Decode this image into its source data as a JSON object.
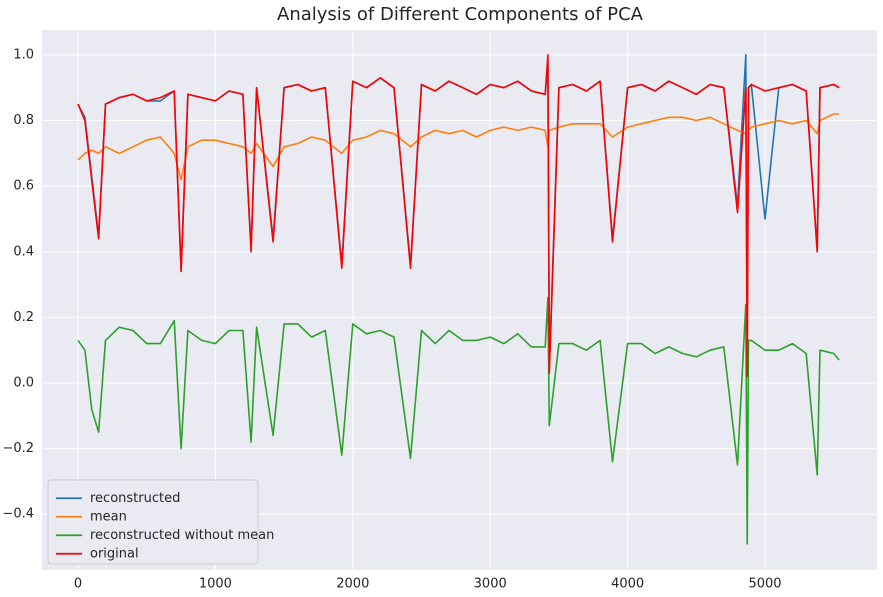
{
  "chart_data": {
    "type": "line",
    "title": "Analysis of Different Components of PCA",
    "x": [
      0,
      50,
      100,
      150,
      200,
      300,
      400,
      500,
      600,
      700,
      750,
      800,
      900,
      1000,
      1100,
      1200,
      1260,
      1300,
      1420,
      1500,
      1600,
      1700,
      1800,
      1920,
      2000,
      2100,
      2200,
      2300,
      2420,
      2500,
      2600,
      2700,
      2800,
      2900,
      3000,
      3100,
      3200,
      3300,
      3400,
      3420,
      3430,
      3500,
      3600,
      3700,
      3800,
      3890,
      4000,
      4100,
      4200,
      4300,
      4400,
      4500,
      4600,
      4700,
      4800,
      4860,
      4870,
      4880,
      4900,
      5000,
      5100,
      5200,
      5300,
      5380,
      5400,
      5500,
      5540
    ],
    "series": [
      {
        "name": "reconstructed",
        "color": "#1f77b4",
        "values": [
          0.85,
          0.81,
          0.63,
          0.45,
          0.85,
          0.87,
          0.88,
          0.86,
          0.86,
          0.89,
          0.35,
          0.88,
          0.87,
          0.86,
          0.89,
          0.88,
          0.41,
          0.9,
          0.44,
          0.9,
          0.91,
          0.89,
          0.9,
          0.36,
          0.92,
          0.9,
          0.93,
          0.9,
          0.36,
          0.91,
          0.89,
          0.92,
          0.9,
          0.88,
          0.91,
          0.9,
          0.92,
          0.89,
          0.88,
          0.98,
          0.05,
          0.9,
          0.91,
          0.89,
          0.92,
          0.44,
          0.9,
          0.91,
          0.89,
          0.92,
          0.9,
          0.88,
          0.91,
          0.9,
          0.54,
          1.0,
          0.05,
          0.9,
          0.91,
          0.5,
          0.9,
          0.91,
          0.89,
          0.41,
          0.9,
          0.91,
          0.9
        ]
      },
      {
        "name": "mean",
        "color": "#ff7f0e",
        "values": [
          0.68,
          0.7,
          0.71,
          0.7,
          0.72,
          0.7,
          0.72,
          0.74,
          0.75,
          0.7,
          0.62,
          0.72,
          0.74,
          0.74,
          0.73,
          0.72,
          0.7,
          0.73,
          0.66,
          0.72,
          0.73,
          0.75,
          0.74,
          0.7,
          0.74,
          0.75,
          0.77,
          0.76,
          0.72,
          0.75,
          0.77,
          0.76,
          0.77,
          0.75,
          0.77,
          0.78,
          0.77,
          0.78,
          0.77,
          0.72,
          0.77,
          0.78,
          0.79,
          0.79,
          0.79,
          0.75,
          0.78,
          0.79,
          0.8,
          0.81,
          0.81,
          0.8,
          0.81,
          0.79,
          0.77,
          0.76,
          0.58,
          0.77,
          0.78,
          0.79,
          0.8,
          0.79,
          0.8,
          0.76,
          0.8,
          0.82,
          0.82
        ]
      },
      {
        "name": "reconstructed without mean",
        "color": "#2ca02c",
        "values": [
          0.13,
          0.1,
          -0.08,
          -0.15,
          0.13,
          0.17,
          0.16,
          0.12,
          0.12,
          0.19,
          -0.2,
          0.16,
          0.13,
          0.12,
          0.16,
          0.16,
          -0.18,
          0.17,
          -0.16,
          0.18,
          0.18,
          0.14,
          0.16,
          -0.22,
          0.18,
          0.15,
          0.16,
          0.14,
          -0.23,
          0.16,
          0.12,
          0.16,
          0.13,
          0.13,
          0.14,
          0.12,
          0.15,
          0.11,
          0.11,
          0.26,
          -0.13,
          0.12,
          0.12,
          0.1,
          0.13,
          -0.24,
          0.12,
          0.12,
          0.09,
          0.11,
          0.09,
          0.08,
          0.1,
          0.11,
          -0.25,
          0.24,
          -0.49,
          0.13,
          0.13,
          0.1,
          0.1,
          0.12,
          0.09,
          -0.28,
          0.1,
          0.09,
          0.07
        ]
      },
      {
        "name": "original",
        "color": "#ff0000",
        "values": [
          0.85,
          0.8,
          0.62,
          0.44,
          0.85,
          0.87,
          0.88,
          0.86,
          0.87,
          0.89,
          0.34,
          0.88,
          0.87,
          0.86,
          0.89,
          0.88,
          0.4,
          0.9,
          0.43,
          0.9,
          0.91,
          0.89,
          0.9,
          0.35,
          0.92,
          0.9,
          0.93,
          0.9,
          0.35,
          0.91,
          0.89,
          0.92,
          0.9,
          0.88,
          0.91,
          0.9,
          0.92,
          0.89,
          0.88,
          1.0,
          0.03,
          0.9,
          0.91,
          0.89,
          0.92,
          0.43,
          0.9,
          0.91,
          0.89,
          0.92,
          0.9,
          0.88,
          0.91,
          0.9,
          0.52,
          0.9,
          0.02,
          0.9,
          0.91,
          0.89,
          0.9,
          0.91,
          0.89,
          0.4,
          0.9,
          0.91,
          0.9
        ]
      }
    ],
    "xlim": [
      -262,
      5815
    ],
    "xticks": [
      0,
      1000,
      2000,
      3000,
      4000,
      5000
    ],
    "ylim": [
      -0.57,
      1.076
    ],
    "yticks": [
      {
        "value": -0.4,
        "label": "−0.4"
      },
      {
        "value": -0.2,
        "label": "−0.2"
      },
      {
        "value": 0,
        "label": "0.0"
      },
      0.2,
      0.4,
      0.6,
      0.8,
      {
        "value": 1,
        "label": "1.0"
      }
    ],
    "grid": true,
    "legend": "lower left"
  }
}
